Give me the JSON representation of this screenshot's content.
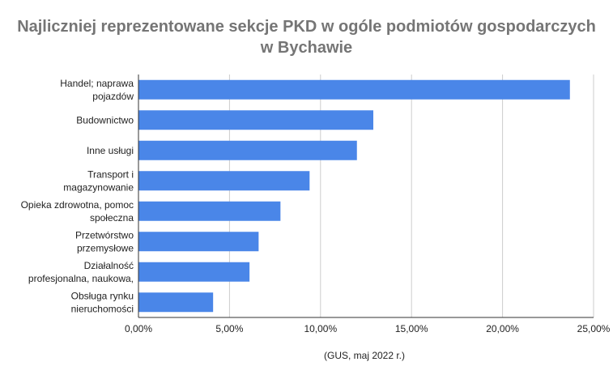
{
  "chart_data": {
    "type": "bar",
    "orientation": "horizontal",
    "title_lines": [
      "Najliczniej reprezentowane sekcje PKD w ogóle podmiotów gospodarczych",
      "w Bychawie"
    ],
    "xlabel": "(GUS, maj 2022 r.)",
    "ylabel": "",
    "categories": [
      [
        "Handel; naprawa",
        "pojazdów"
      ],
      [
        "Budownictwo"
      ],
      [
        "Inne usługi"
      ],
      [
        "Transport i",
        "magazynowanie"
      ],
      [
        "Opieka zdrowotna, pomoc",
        "społeczna"
      ],
      [
        "Przetwórstwo",
        "przemysłowe"
      ],
      [
        "Działalność",
        "profesjonalna, naukowa,"
      ],
      [
        "Obsługa rynku",
        "nieruchomości"
      ]
    ],
    "values": [
      23.7,
      12.9,
      12.0,
      9.4,
      7.8,
      6.6,
      6.1,
      4.1
    ],
    "xlim": [
      0,
      25
    ],
    "x_ticks": [
      0,
      5,
      10,
      15,
      20,
      25
    ],
    "x_tick_labels": [
      "0,00%",
      "5,00%",
      "10,00%",
      "15,00%",
      "20,00%",
      "25,00%"
    ],
    "grid": true,
    "legend": "none",
    "bar_color": "#4a86e8",
    "grid_color": "#cccccc",
    "axis_color": "#333333",
    "text_color": "#222222",
    "title_color": "#757575"
  }
}
